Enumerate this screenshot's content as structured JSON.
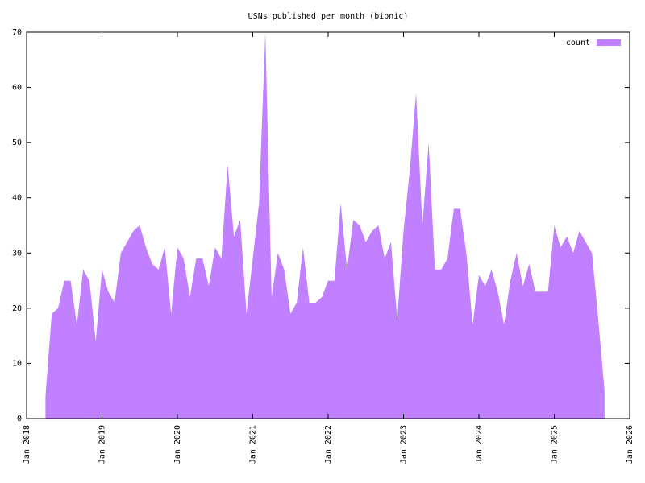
{
  "chart_data": {
    "type": "area",
    "title": "USNs published per month (bionic)",
    "x": [
      "2018-04",
      "2018-05",
      "2018-06",
      "2018-07",
      "2018-08",
      "2018-09",
      "2018-10",
      "2018-11",
      "2018-12",
      "2019-01",
      "2019-02",
      "2019-03",
      "2019-04",
      "2019-05",
      "2019-06",
      "2019-07",
      "2019-08",
      "2019-09",
      "2019-10",
      "2019-11",
      "2019-12",
      "2020-01",
      "2020-02",
      "2020-03",
      "2020-04",
      "2020-05",
      "2020-06",
      "2020-07",
      "2020-08",
      "2020-09",
      "2020-10",
      "2020-11",
      "2020-12",
      "2021-01",
      "2021-02",
      "2021-03",
      "2021-04",
      "2021-05",
      "2021-06",
      "2021-07",
      "2021-08",
      "2021-09",
      "2021-10",
      "2021-11",
      "2021-12",
      "2022-01",
      "2022-02",
      "2022-03",
      "2022-04",
      "2022-05",
      "2022-06",
      "2022-07",
      "2022-08",
      "2022-09",
      "2022-10",
      "2022-11",
      "2022-12",
      "2023-01",
      "2023-02",
      "2023-03",
      "2023-04",
      "2023-05",
      "2023-06",
      "2023-07",
      "2023-08",
      "2023-09",
      "2023-10",
      "2023-11",
      "2023-12",
      "2024-01",
      "2024-02",
      "2024-03",
      "2024-04",
      "2024-05",
      "2024-06",
      "2024-07",
      "2024-08",
      "2024-09",
      "2024-10",
      "2024-11",
      "2024-12",
      "2025-01",
      "2025-02",
      "2025-03",
      "2025-04",
      "2025-05",
      "2025-06",
      "2025-07",
      "2025-08",
      "2025-09"
    ],
    "series": [
      {
        "name": "count",
        "color": "#c080ff",
        "values": [
          4,
          19,
          20,
          25,
          25,
          17,
          27,
          25,
          14,
          27,
          23,
          21,
          30,
          32,
          34,
          35,
          31,
          28,
          27,
          31,
          19,
          31,
          29,
          22,
          29,
          29,
          24,
          31,
          29,
          46,
          33,
          36,
          19,
          29,
          39,
          70,
          22,
          30,
          27,
          19,
          21,
          31,
          21,
          21,
          22,
          25,
          25,
          39,
          27,
          36,
          35,
          32,
          34,
          35,
          29,
          32,
          18,
          34,
          45,
          59,
          35,
          50,
          27,
          27,
          29,
          38,
          38,
          30,
          17,
          26,
          24,
          27,
          23,
          17,
          25,
          30,
          24,
          28,
          23,
          23,
          23,
          35,
          31,
          33,
          30,
          34,
          32,
          30,
          18,
          5
        ]
      }
    ],
    "xlim": [
      "2018-01",
      "2026-01"
    ],
    "xticks": [
      {
        "value": "2018-01",
        "label": "Jan 2018"
      },
      {
        "value": "2019-01",
        "label": "Jan 2019"
      },
      {
        "value": "2020-01",
        "label": "Jan 2020"
      },
      {
        "value": "2021-01",
        "label": "Jan 2021"
      },
      {
        "value": "2022-01",
        "label": "Jan 2022"
      },
      {
        "value": "2023-01",
        "label": "Jan 2023"
      },
      {
        "value": "2024-01",
        "label": "Jan 2024"
      },
      {
        "value": "2025-01",
        "label": "Jan 2025"
      },
      {
        "value": "2026-01",
        "label": "Jan 2026"
      }
    ],
    "ylim": [
      0,
      70
    ],
    "yticks": [
      0,
      10,
      20,
      30,
      40,
      50,
      60,
      70
    ],
    "legend": "upper right"
  }
}
